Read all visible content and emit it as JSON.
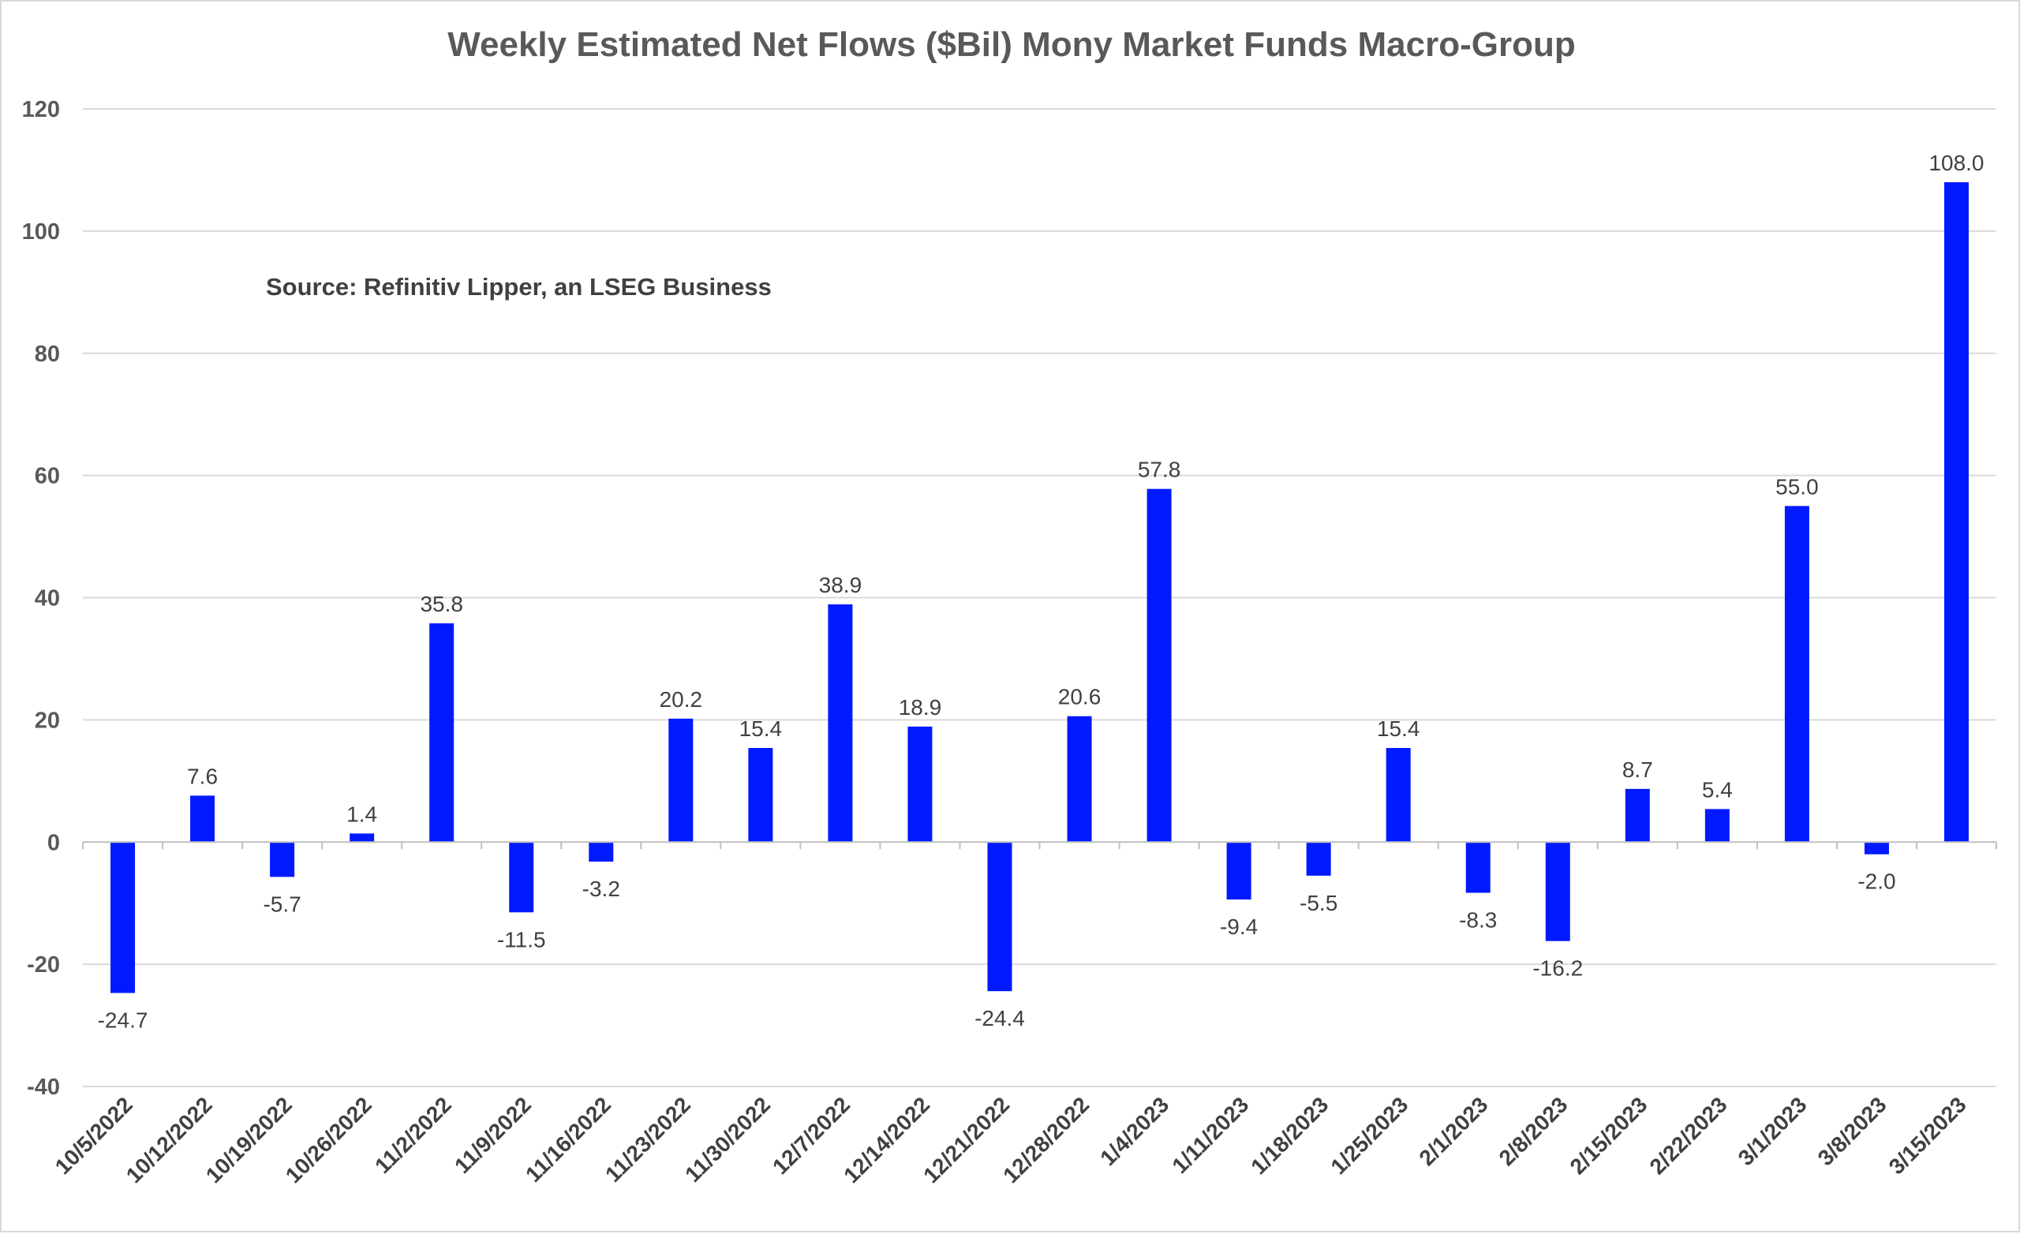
{
  "chart_data": {
    "type": "bar",
    "title": "Weekly Estimated Net Flows ($Bil) Mony Market Funds Macro-Group",
    "annotation": "Source: Refinitiv Lipper, an LSEG Business",
    "xlabel": "",
    "ylabel": "",
    "ylim": [
      -40,
      120
    ],
    "yticks": [
      120,
      100,
      80,
      60,
      40,
      20,
      0,
      -20,
      -40
    ],
    "grid": true,
    "bar_color": "#0019FF",
    "categories": [
      "10/5/2022",
      "10/12/2022",
      "10/19/2022",
      "10/26/2022",
      "11/2/2022",
      "11/9/2022",
      "11/16/2022",
      "11/23/2022",
      "11/30/2022",
      "12/7/2022",
      "12/14/2022",
      "12/21/2022",
      "12/28/2022",
      "1/4/2023",
      "1/11/2023",
      "1/18/2023",
      "1/25/2023",
      "2/1/2023",
      "2/8/2023",
      "2/15/2023",
      "2/22/2023",
      "3/1/2023",
      "3/8/2023",
      "3/15/2023"
    ],
    "values": [
      -24.7,
      7.6,
      -5.7,
      1.4,
      35.8,
      -11.5,
      -3.2,
      20.2,
      15.4,
      38.9,
      18.9,
      -24.4,
      20.6,
      57.8,
      -9.4,
      -5.5,
      15.4,
      -8.3,
      -16.2,
      8.7,
      5.4,
      55.0,
      -2.0,
      108.0
    ],
    "data_labels": [
      "-24.7",
      "7.6",
      "-5.7",
      "1.4",
      "35.8",
      "-11.5",
      "-3.2",
      "20.2",
      "15.4",
      "38.9",
      "18.9",
      "-24.4",
      "20.6",
      "57.8",
      "-9.4",
      "-5.5",
      "15.4",
      "-8.3",
      "-16.2",
      "8.7",
      "5.4",
      "55.0",
      "-2.0",
      "108.0"
    ]
  }
}
